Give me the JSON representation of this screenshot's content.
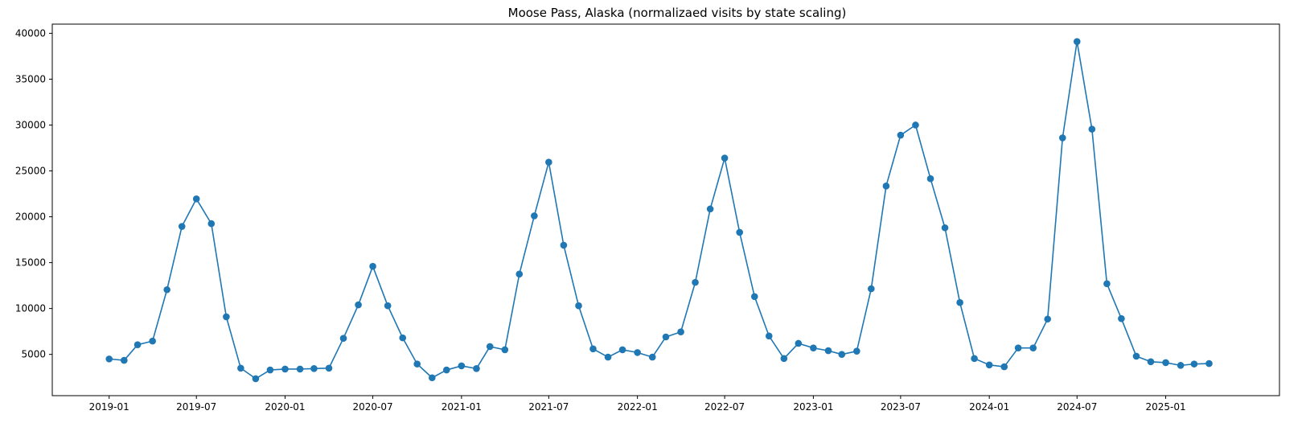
{
  "chart_data": {
    "type": "line",
    "title": "Moose Pass, Alaska (normalizaed visits by state scaling)",
    "xlabel": "",
    "ylabel": "",
    "color": "#1f77b4",
    "marker": "circle",
    "grid": false,
    "legend": "none",
    "xlim": [
      "2018-09-05",
      "2025-08-25"
    ],
    "ylim": [
      500,
      41000
    ],
    "xticks": [
      "2019-01",
      "2019-07",
      "2020-01",
      "2020-07",
      "2021-01",
      "2021-07",
      "2022-01",
      "2022-07",
      "2023-01",
      "2023-07",
      "2024-01",
      "2024-07",
      "2025-01"
    ],
    "yticks": [
      5000,
      10000,
      15000,
      20000,
      25000,
      30000,
      35000,
      40000
    ],
    "x": [
      "2019-01",
      "2019-02",
      "2019-03",
      "2019-04",
      "2019-05",
      "2019-06",
      "2019-07",
      "2019-08",
      "2019-09",
      "2019-10",
      "2019-11",
      "2019-12",
      "2020-01",
      "2020-02",
      "2020-03",
      "2020-04",
      "2020-05",
      "2020-06",
      "2020-07",
      "2020-08",
      "2020-09",
      "2020-10",
      "2020-11",
      "2020-12",
      "2021-01",
      "2021-02",
      "2021-03",
      "2021-04",
      "2021-05",
      "2021-06",
      "2021-07",
      "2021-08",
      "2021-09",
      "2021-10",
      "2021-11",
      "2021-12",
      "2022-01",
      "2022-02",
      "2022-03",
      "2022-04",
      "2022-05",
      "2022-06",
      "2022-07",
      "2022-08",
      "2022-09",
      "2022-10",
      "2022-11",
      "2022-12",
      "2023-01",
      "2023-02",
      "2023-03",
      "2023-04",
      "2023-05",
      "2023-06",
      "2023-07",
      "2023-08",
      "2023-09",
      "2023-10",
      "2023-11",
      "2023-12",
      "2024-01",
      "2024-02",
      "2024-03",
      "2024-04",
      "2024-05",
      "2024-06",
      "2024-07",
      "2024-08",
      "2024-09",
      "2024-10",
      "2024-11",
      "2024-12",
      "2025-01",
      "2025-02",
      "2025-03",
      "2025-04"
    ],
    "y": [
      4500,
      4350,
      6050,
      6450,
      12050,
      18950,
      21950,
      19250,
      9100,
      3500,
      2350,
      3300,
      3400,
      3400,
      3450,
      3500,
      6750,
      10400,
      14600,
      10300,
      6800,
      3950,
      2450,
      3300,
      3750,
      3450,
      5850,
      5500,
      13750,
      20100,
      25950,
      16900,
      10300,
      5600,
      4700,
      5500,
      5200,
      4700,
      6900,
      7450,
      12850,
      20850,
      26400,
      18300,
      11300,
      7000,
      4550,
      6200,
      5700,
      5400,
      5000,
      5350,
      12150,
      23350,
      28900,
      30000,
      24150,
      18800,
      10650,
      4550,
      3850,
      3650,
      5700,
      5700,
      8850,
      28600,
      39100,
      29550,
      12700,
      8900,
      4800,
      4200,
      4100,
      3800,
      3950,
      4000
    ]
  }
}
